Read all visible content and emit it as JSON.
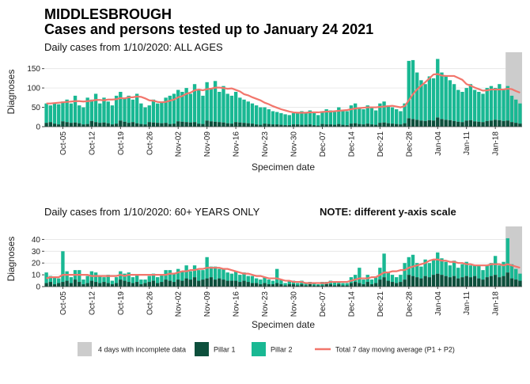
{
  "title": "MIDDLESBROUGH",
  "subtitle": "Cases and persons tested up to January 24 2021",
  "incomplete": {
    "label": "4 days with incomplete data",
    "days": 4,
    "color": "#cccccc"
  },
  "chart_data": [
    {
      "type": "bar",
      "stacked": true,
      "grid": true,
      "subtitle": "Daily cases from 1/10/2020: ALL AGES",
      "x_label": "Specimen date",
      "y_label": "Diagnoses",
      "categories": [
        null,
        null,
        null,
        null,
        "Oct-05",
        null,
        null,
        null,
        null,
        null,
        null,
        "Oct-12",
        null,
        null,
        null,
        null,
        null,
        null,
        "Oct-19",
        null,
        null,
        null,
        null,
        null,
        null,
        "Oct-26",
        null,
        null,
        null,
        null,
        null,
        null,
        "Nov-02",
        null,
        null,
        null,
        null,
        null,
        null,
        "Nov-09",
        null,
        null,
        null,
        null,
        null,
        null,
        "Nov-16",
        null,
        null,
        null,
        null,
        null,
        null,
        "Nov-23",
        null,
        null,
        null,
        null,
        null,
        null,
        "Nov-30",
        null,
        null,
        null,
        null,
        null,
        null,
        "Dec-07",
        null,
        null,
        null,
        null,
        null,
        null,
        "Dec-14",
        null,
        null,
        null,
        null,
        null,
        null,
        "Dec-21",
        null,
        null,
        null,
        null,
        null,
        null,
        "Dec-28",
        null,
        null,
        null,
        null,
        null,
        null,
        "Jan-04",
        null,
        null,
        null,
        null,
        null,
        null,
        "Jan-11",
        null,
        null,
        null,
        null,
        null,
        null,
        "Jan-18",
        null,
        null,
        null,
        null,
        null,
        null
      ],
      "ylim": [
        0,
        180
      ],
      "yticks": [
        0,
        50,
        100,
        150
      ],
      "series": [
        {
          "name": "Pillar 1",
          "color": "#0d4f3c",
          "values": [
            10,
            12,
            8,
            6,
            14,
            12,
            10,
            11,
            9,
            6,
            7,
            15,
            12,
            10,
            11,
            9,
            6,
            8,
            16,
            13,
            10,
            12,
            9,
            7,
            6,
            12,
            11,
            10,
            9,
            10,
            7,
            8,
            14,
            13,
            12,
            11,
            12,
            8,
            7,
            16,
            14,
            13,
            12,
            11,
            9,
            8,
            12,
            11,
            10,
            9,
            8,
            6,
            5,
            8,
            7,
            6,
            6,
            5,
            4,
            4,
            6,
            6,
            5,
            5,
            6,
            4,
            3,
            7,
            6,
            6,
            5,
            7,
            5,
            4,
            8,
            9,
            7,
            6,
            8,
            6,
            5,
            10,
            11,
            9,
            8,
            7,
            6,
            9,
            22,
            20,
            18,
            16,
            15,
            17,
            16,
            24,
            20,
            18,
            17,
            15,
            13,
            12,
            16,
            17,
            14,
            13,
            12,
            15,
            16,
            18,
            17,
            15,
            16,
            12,
            10,
            8
          ]
        },
        {
          "name": "Pillar 2",
          "color": "#19b893",
          "values": [
            50,
            43,
            54,
            52,
            51,
            58,
            50,
            69,
            46,
            44,
            68,
            55,
            73,
            50,
            64,
            56,
            49,
            72,
            74,
            62,
            70,
            58,
            76,
            53,
            44,
            43,
            59,
            50,
            56,
            65,
            73,
            77,
            81,
            77,
            88,
            74,
            98,
            87,
            73,
            99,
            86,
            105,
            78,
            94,
            76,
            72,
            78,
            64,
            60,
            56,
            52,
            49,
            45,
            42,
            38,
            34,
            32,
            30,
            28,
            26,
            29,
            32,
            35,
            31,
            36,
            31,
            27,
            33,
            39,
            36,
            33,
            43,
            39,
            36,
            47,
            51,
            43,
            39,
            47,
            42,
            37,
            50,
            54,
            46,
            42,
            38,
            34,
            51,
            148,
            152,
            122,
            104,
            95,
            113,
            109,
            151,
            120,
            112,
            103,
            95,
            82,
            78,
            84,
            93,
            81,
            77,
            73,
            85,
            89,
            82,
            93,
            80,
            89,
            68,
            60,
            52
          ]
        },
        {
          "name": "Total 7 day moving average (P1 + P2)",
          "type": "line",
          "color": "#f2766c",
          "values": [
            60,
            60,
            61,
            62,
            63,
            64,
            65,
            66,
            66,
            65,
            66,
            67,
            69,
            69,
            68,
            70,
            70,
            71,
            74,
            73,
            76,
            76,
            78,
            77,
            73,
            68,
            67,
            64,
            63,
            64,
            67,
            70,
            76,
            79,
            85,
            88,
            94,
            96,
            94,
            97,
            98,
            101,
            101,
            100,
            98,
            99,
            95,
            91,
            84,
            81,
            76,
            72,
            68,
            62,
            58,
            53,
            49,
            45,
            42,
            39,
            37,
            36,
            36,
            36,
            37,
            37,
            37,
            38,
            39,
            39,
            40,
            41,
            42,
            43,
            45,
            47,
            48,
            49,
            50,
            50,
            50,
            51,
            52,
            53,
            54,
            52,
            50,
            53,
            68,
            84,
            96,
            106,
            115,
            125,
            135,
            136,
            132,
            131,
            131,
            131,
            126,
            121,
            110,
            106,
            101,
            97,
            93,
            94,
            96,
            96,
            96,
            96,
            98,
            97,
            92,
            88
          ]
        }
      ]
    },
    {
      "type": "bar",
      "stacked": true,
      "grid": true,
      "subtitle": "Daily cases from 1/10/2020: 60+ YEARS ONLY",
      "note": "NOTE: different y-axis scale",
      "x_label": "Specimen date",
      "y_label": "Diagnoses",
      "categories": [
        null,
        null,
        null,
        null,
        "Oct-05",
        null,
        null,
        null,
        null,
        null,
        null,
        "Oct-12",
        null,
        null,
        null,
        null,
        null,
        null,
        "Oct-19",
        null,
        null,
        null,
        null,
        null,
        null,
        "Oct-26",
        null,
        null,
        null,
        null,
        null,
        null,
        "Nov-02",
        null,
        null,
        null,
        null,
        null,
        null,
        "Nov-09",
        null,
        null,
        null,
        null,
        null,
        null,
        "Nov-16",
        null,
        null,
        null,
        null,
        null,
        null,
        "Nov-23",
        null,
        null,
        null,
        null,
        null,
        null,
        "Nov-30",
        null,
        null,
        null,
        null,
        null,
        null,
        "Dec-07",
        null,
        null,
        null,
        null,
        null,
        null,
        "Dec-14",
        null,
        null,
        null,
        null,
        null,
        null,
        "Dec-21",
        null,
        null,
        null,
        null,
        null,
        null,
        "Dec-28",
        null,
        null,
        null,
        null,
        null,
        null,
        "Jan-04",
        null,
        null,
        null,
        null,
        null,
        null,
        "Jan-11",
        null,
        null,
        null,
        null,
        null,
        null,
        "Jan-18",
        null,
        null,
        null,
        null,
        null,
        null
      ],
      "ylim": [
        0,
        47
      ],
      "yticks": [
        0,
        10,
        20,
        30,
        40
      ],
      "series": [
        {
          "color": "#0d4f3c",
          "values": [
            3,
            4,
            2,
            3,
            4,
            5,
            3,
            6,
            4,
            2,
            3,
            5,
            4,
            3,
            4,
            3,
            2,
            3,
            6,
            5,
            4,
            3,
            4,
            2,
            3,
            4,
            5,
            3,
            4,
            6,
            5,
            4,
            6,
            5,
            7,
            6,
            8,
            5,
            6,
            7,
            8,
            6,
            7,
            6,
            5,
            5,
            5,
            4,
            5,
            4,
            3,
            3,
            2,
            3,
            2,
            2,
            3,
            2,
            1,
            2,
            2,
            1,
            2,
            1,
            2,
            1,
            1,
            1,
            2,
            2,
            1,
            2,
            1,
            1,
            3,
            4,
            3,
            2,
            4,
            2,
            3,
            6,
            8,
            5,
            4,
            3,
            4,
            6,
            10,
            9,
            8,
            7,
            9,
            8,
            10,
            11,
            10,
            9,
            8,
            9,
            7,
            8,
            9,
            8,
            9,
            7,
            6,
            8,
            9,
            10,
            8,
            9,
            12,
            7,
            6,
            5
          ]
        },
        {
          "color": "#19b893",
          "values": [
            9,
            5,
            6,
            4,
            26,
            8,
            5,
            8,
            10,
            4,
            6,
            8,
            8,
            6,
            4,
            7,
            3,
            5,
            7,
            6,
            8,
            5,
            6,
            4,
            3,
            5,
            6,
            5,
            6,
            8,
            9,
            7,
            9,
            8,
            11,
            7,
            10,
            9,
            8,
            18,
            9,
            11,
            8,
            9,
            7,
            6,
            8,
            6,
            7,
            5,
            6,
            4,
            4,
            5,
            4,
            3,
            12,
            4,
            2,
            3,
            3,
            2,
            3,
            2,
            2,
            2,
            1,
            3,
            2,
            3,
            3,
            2,
            2,
            2,
            5,
            6,
            13,
            4,
            6,
            4,
            5,
            10,
            20,
            7,
            6,
            5,
            6,
            14,
            15,
            18,
            12,
            10,
            14,
            12,
            13,
            18,
            14,
            12,
            10,
            13,
            9,
            11,
            12,
            10,
            9,
            11,
            8,
            10,
            11,
            16,
            10,
            12,
            29,
            12,
            9,
            6
          ]
        },
        {
          "type": "line",
          "color": "#f2766c",
          "values": [
            7,
            8,
            8,
            8,
            10,
            10,
            10,
            10,
            10,
            10,
            10,
            9,
            9,
            9,
            9,
            9,
            9,
            9,
            10,
            9,
            10,
            10,
            10,
            10,
            10,
            10,
            10,
            10,
            10,
            10,
            11,
            11,
            12,
            13,
            13,
            14,
            14,
            15,
            15,
            16,
            16,
            16,
            16,
            15,
            15,
            14,
            13,
            12,
            11,
            11,
            10,
            9,
            9,
            8,
            7,
            7,
            7,
            6,
            5,
            5,
            4,
            4,
            4,
            3,
            3,
            3,
            3,
            3,
            3,
            4,
            4,
            4,
            4,
            4,
            5,
            6,
            7,
            7,
            7,
            8,
            8,
            10,
            12,
            12,
            13,
            13,
            14,
            14,
            16,
            17,
            18,
            19,
            20,
            22,
            23,
            23,
            22,
            22,
            21,
            21,
            20,
            20,
            19,
            19,
            18,
            18,
            18,
            18,
            19,
            19,
            19,
            18,
            19,
            18,
            17,
            16
          ]
        }
      ]
    }
  ]
}
